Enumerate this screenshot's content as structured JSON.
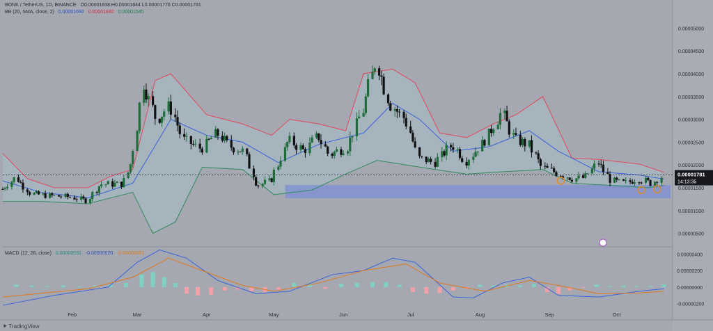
{
  "header": {
    "symbol": "BONK / TetherUS, 1D, BINANCE",
    "ohlc": "O0.00001838  H0.00001844  L0.00001778  C0.00001781",
    "bb_label": "BB (20, SMA, close, 2)",
    "bb_basis": "0.00001692",
    "bb_upper": "0.00001840",
    "bb_lower": "0.00001545"
  },
  "macd_header": {
    "label": "MACD (12, 26, close)",
    "hist": "0.00000031",
    "macd": "-0.00000020",
    "signal": "-0.00000051"
  },
  "price_label": {
    "value": "0.00001781",
    "countdown": "14:13:35"
  },
  "watermark": "TradingView",
  "colors": {
    "background": "#a5a8b0",
    "bull": "#1f6b3a",
    "bear": "#111111",
    "upper_band": "#e0485c",
    "basis": "#3a62d9",
    "lower_band": "#2d8a5a",
    "band_fill": "#a6c3cf",
    "support_zone": "#7d8fd6",
    "macd_line": "#3a62d9",
    "signal_line": "#e0781e",
    "hist_up": "#7fd1c4",
    "hist_down": "#f4a0a8",
    "marker": "#e08a2a"
  },
  "chart_data": [
    {
      "type": "candlestick",
      "title": "BONK / TetherUS, 1D, BINANCE",
      "y_axis_ticks": [
        "0.00005000",
        "0.00004500",
        "0.00004000",
        "0.00003500",
        "0.00003000",
        "0.00002500",
        "0.00002000",
        "0.00001500",
        "0.00001000",
        "0.00000500"
      ],
      "x_axis_ticks": [
        "Feb",
        "Mar",
        "Apr",
        "May",
        "Jun",
        "Jul",
        "Aug",
        "Sep",
        "Oct"
      ],
      "ylim": [
        2.5e-06,
        5.25e-05
      ],
      "grid": false,
      "last_close": 1.781e-05,
      "close_path": [
        {
          "x": "2024-01-01",
          "y": 1.47e-05
        },
        {
          "x": "2024-01-07",
          "y": 1.72e-05
        },
        {
          "x": "2024-01-14",
          "y": 1.37e-05
        },
        {
          "x": "2024-01-21",
          "y": 1.33e-05
        },
        {
          "x": "2024-01-31",
          "y": 1.3e-05
        },
        {
          "x": "2024-02-08",
          "y": 1.22e-05
        },
        {
          "x": "2024-02-14",
          "y": 1.58e-05
        },
        {
          "x": "2024-02-24",
          "y": 1.58e-05
        },
        {
          "x": "2024-02-28",
          "y": 2.1e-05
        },
        {
          "x": "2024-03-04",
          "y": 3.8e-05
        },
        {
          "x": "2024-03-10",
          "y": 3e-05
        },
        {
          "x": "2024-03-16",
          "y": 3.3e-05
        },
        {
          "x": "2024-03-22",
          "y": 2.55e-05
        },
        {
          "x": "2024-03-30",
          "y": 2.35e-05
        },
        {
          "x": "2024-04-06",
          "y": 2.7e-05
        },
        {
          "x": "2024-04-12",
          "y": 2.4e-05
        },
        {
          "x": "2024-04-18",
          "y": 2.3e-05
        },
        {
          "x": "2024-04-24",
          "y": 1.55e-05
        },
        {
          "x": "2024-04-30",
          "y": 1.65e-05
        },
        {
          "x": "2024-05-08",
          "y": 2.55e-05
        },
        {
          "x": "2024-05-15",
          "y": 2.3e-05
        },
        {
          "x": "2024-05-21",
          "y": 2.65e-05
        },
        {
          "x": "2024-05-26",
          "y": 2.22e-05
        },
        {
          "x": "2024-06-03",
          "y": 2.4e-05
        },
        {
          "x": "2024-06-10",
          "y": 3.2e-05
        },
        {
          "x": "2024-06-16",
          "y": 4.3e-05
        },
        {
          "x": "2024-06-22",
          "y": 3.35e-05
        },
        {
          "x": "2024-06-29",
          "y": 3e-05
        },
        {
          "x": "2024-07-05",
          "y": 2.15e-05
        },
        {
          "x": "2024-07-12",
          "y": 2.05e-05
        },
        {
          "x": "2024-07-20",
          "y": 2.45e-05
        },
        {
          "x": "2024-07-26",
          "y": 2.08e-05
        },
        {
          "x": "2024-08-03",
          "y": 2.5e-05
        },
        {
          "x": "2024-08-11",
          "y": 3.15e-05
        },
        {
          "x": "2024-08-17",
          "y": 2.55e-05
        },
        {
          "x": "2024-08-23",
          "y": 2.45e-05
        },
        {
          "x": "2024-08-29",
          "y": 1.95e-05
        },
        {
          "x": "2024-09-05",
          "y": 1.82e-05
        },
        {
          "x": "2024-09-12",
          "y": 1.7e-05
        },
        {
          "x": "2024-09-17",
          "y": 1.72e-05
        },
        {
          "x": "2024-09-23",
          "y": 2.05e-05
        },
        {
          "x": "2024-09-29",
          "y": 1.65e-05
        },
        {
          "x": "2024-10-05",
          "y": 1.6e-05
        },
        {
          "x": "2024-10-11",
          "y": 1.7e-05
        },
        {
          "x": "2024-10-17",
          "y": 1.6e-05
        },
        {
          "x": "2024-10-22",
          "y": 1.78e-05
        }
      ],
      "upper_band": [
        {
          "x": "2024-01-01",
          "y": 2.25e-05
        },
        {
          "x": "2024-01-12",
          "y": 1.7e-05
        },
        {
          "x": "2024-01-24",
          "y": 1.5e-05
        },
        {
          "x": "2024-02-08",
          "y": 1.5e-05
        },
        {
          "x": "2024-02-18",
          "y": 1.75e-05
        },
        {
          "x": "2024-02-28",
          "y": 1.9e-05
        },
        {
          "x": "2024-03-09",
          "y": 3.85e-05
        },
        {
          "x": "2024-03-16",
          "y": 4e-05
        },
        {
          "x": "2024-04-01",
          "y": 3.1e-05
        },
        {
          "x": "2024-04-17",
          "y": 2.9e-05
        },
        {
          "x": "2024-04-30",
          "y": 2.65e-05
        },
        {
          "x": "2024-05-08",
          "y": 3e-05
        },
        {
          "x": "2024-05-21",
          "y": 2.9e-05
        },
        {
          "x": "2024-06-02",
          "y": 2.75e-05
        },
        {
          "x": "2024-06-10",
          "y": 4e-05
        },
        {
          "x": "2024-06-23",
          "y": 4.1e-05
        },
        {
          "x": "2024-07-03",
          "y": 3.8e-05
        },
        {
          "x": "2024-07-14",
          "y": 2.7e-05
        },
        {
          "x": "2024-07-26",
          "y": 2.6e-05
        },
        {
          "x": "2024-08-07",
          "y": 2.9e-05
        },
        {
          "x": "2024-08-17",
          "y": 3.1e-05
        },
        {
          "x": "2024-08-29",
          "y": 3.5e-05
        },
        {
          "x": "2024-09-11",
          "y": 2.15e-05
        },
        {
          "x": "2024-09-23",
          "y": 2.12e-05
        },
        {
          "x": "2024-10-11",
          "y": 2.02e-05
        },
        {
          "x": "2024-10-22",
          "y": 1.84e-05
        }
      ],
      "basis": [
        {
          "x": "2024-01-01",
          "y": 1.65e-05
        },
        {
          "x": "2024-01-18",
          "y": 1.4e-05
        },
        {
          "x": "2024-02-08",
          "y": 1.28e-05
        },
        {
          "x": "2024-02-28",
          "y": 1.6e-05
        },
        {
          "x": "2024-03-16",
          "y": 3e-05
        },
        {
          "x": "2024-04-01",
          "y": 2.65e-05
        },
        {
          "x": "2024-04-17",
          "y": 2.5e-05
        },
        {
          "x": "2024-05-03",
          "y": 2.05e-05
        },
        {
          "x": "2024-05-21",
          "y": 2.45e-05
        },
        {
          "x": "2024-06-10",
          "y": 2.7e-05
        },
        {
          "x": "2024-06-23",
          "y": 3.35e-05
        },
        {
          "x": "2024-07-05",
          "y": 3e-05
        },
        {
          "x": "2024-07-20",
          "y": 2.3e-05
        },
        {
          "x": "2024-08-05",
          "y": 2.4e-05
        },
        {
          "x": "2024-08-23",
          "y": 2.75e-05
        },
        {
          "x": "2024-09-05",
          "y": 2.3e-05
        },
        {
          "x": "2024-09-23",
          "y": 1.85e-05
        },
        {
          "x": "2024-10-11",
          "y": 1.78e-05
        },
        {
          "x": "2024-10-22",
          "y": 1.69e-05
        }
      ],
      "lower_band": [
        {
          "x": "2024-01-01",
          "y": 1.2e-05
        },
        {
          "x": "2024-01-18",
          "y": 1.2e-05
        },
        {
          "x": "2024-02-08",
          "y": 1.15e-05
        },
        {
          "x": "2024-02-28",
          "y": 1.4e-05
        },
        {
          "x": "2024-03-08",
          "y": 5e-06
        },
        {
          "x": "2024-03-18",
          "y": 7.5e-06
        },
        {
          "x": "2024-03-30",
          "y": 1.95e-05
        },
        {
          "x": "2024-04-17",
          "y": 1.9e-05
        },
        {
          "x": "2024-05-01",
          "y": 1.35e-05
        },
        {
          "x": "2024-05-18",
          "y": 1.45e-05
        },
        {
          "x": "2024-06-02",
          "y": 1.8e-05
        },
        {
          "x": "2024-06-16",
          "y": 2.1e-05
        },
        {
          "x": "2024-06-29",
          "y": 2e-05
        },
        {
          "x": "2024-07-12",
          "y": 1.9e-05
        },
        {
          "x": "2024-07-26",
          "y": 1.8e-05
        },
        {
          "x": "2024-08-11",
          "y": 1.85e-05
        },
        {
          "x": "2024-08-29",
          "y": 1.9e-05
        },
        {
          "x": "2024-09-11",
          "y": 1.6e-05
        },
        {
          "x": "2024-09-29",
          "y": 1.55e-05
        },
        {
          "x": "2024-10-15",
          "y": 1.5e-05
        },
        {
          "x": "2024-10-22",
          "y": 1.55e-05
        }
      ],
      "support_zone": {
        "from": "2024-05-06",
        "to": "2024-10-25",
        "low": 1.27e-05,
        "high": 1.56e-05
      },
      "swing_low_markers": [
        "2024-09-06",
        "2024-10-12",
        "2024-10-19"
      ],
      "tick_dates": {
        "Feb": "2024-02-01",
        "Mar": "2024-03-01",
        "Apr": "2024-04-01",
        "May": "2024-05-01",
        "Jun": "2024-06-01",
        "Jul": "2024-07-01",
        "Aug": "2024-08-01",
        "Sep": "2024-09-01",
        "Oct": "2024-10-01"
      }
    },
    {
      "type": "histogram",
      "title": "MACD (12, 26, close)",
      "y_axis_ticks": [
        "0.00000400",
        "0.00000200",
        "0.00000000",
        "-0.00000200"
      ],
      "ylim": [
        -2.7e-06,
        4.7e-06
      ],
      "macd_line": [
        {
          "x": "2024-01-01",
          "y": -2.2e-06
        },
        {
          "x": "2024-01-24",
          "y": -1e-06
        },
        {
          "x": "2024-02-17",
          "y": 0.0
        },
        {
          "x": "2024-03-01",
          "y": 3e-06
        },
        {
          "x": "2024-03-11",
          "y": 4.5e-06
        },
        {
          "x": "2024-03-23",
          "y": 3.5e-06
        },
        {
          "x": "2024-04-06",
          "y": 8e-07
        },
        {
          "x": "2024-04-23",
          "y": -8e-07
        },
        {
          "x": "2024-05-08",
          "y": -5e-07
        },
        {
          "x": "2024-05-27",
          "y": 1.5e-06
        },
        {
          "x": "2024-06-10",
          "y": 2e-06
        },
        {
          "x": "2024-06-23",
          "y": 3.5e-06
        },
        {
          "x": "2024-07-03",
          "y": 3e-06
        },
        {
          "x": "2024-07-20",
          "y": -1.2e-06
        },
        {
          "x": "2024-07-29",
          "y": -1.3e-06
        },
        {
          "x": "2024-08-11",
          "y": 5e-07
        },
        {
          "x": "2024-08-23",
          "y": 1.2e-06
        },
        {
          "x": "2024-09-05",
          "y": -1e-06
        },
        {
          "x": "2024-09-23",
          "y": -1.2e-06
        },
        {
          "x": "2024-10-11",
          "y": -5e-07
        },
        {
          "x": "2024-10-22",
          "y": -2e-07
        }
      ],
      "signal_line": [
        {
          "x": "2024-01-01",
          "y": -1.2e-06
        },
        {
          "x": "2024-02-08",
          "y": -2e-07
        },
        {
          "x": "2024-02-28",
          "y": 1.2e-06
        },
        {
          "x": "2024-03-15",
          "y": 3.5e-06
        },
        {
          "x": "2024-03-30",
          "y": 2e-06
        },
        {
          "x": "2024-04-17",
          "y": 2e-07
        },
        {
          "x": "2024-05-01",
          "y": -5e-07
        },
        {
          "x": "2024-05-21",
          "y": 5e-07
        },
        {
          "x": "2024-06-10",
          "y": 2e-06
        },
        {
          "x": "2024-06-29",
          "y": 2.8e-06
        },
        {
          "x": "2024-07-14",
          "y": 5e-07
        },
        {
          "x": "2024-08-03",
          "y": -5e-07
        },
        {
          "x": "2024-08-23",
          "y": 8e-07
        },
        {
          "x": "2024-09-05",
          "y": 2e-07
        },
        {
          "x": "2024-09-23",
          "y": -8e-07
        },
        {
          "x": "2024-10-11",
          "y": -7e-07
        },
        {
          "x": "2024-10-22",
          "y": -5e-07
        }
      ],
      "histogram": [
        {
          "x": "2024-01-07",
          "y": 3e-07
        },
        {
          "x": "2024-01-14",
          "y": 2e-07
        },
        {
          "x": "2024-01-21",
          "y": 1e-07
        },
        {
          "x": "2024-01-28",
          "y": 2e-07
        },
        {
          "x": "2024-02-04",
          "y": 1e-07
        },
        {
          "x": "2024-02-11",
          "y": 2e-07
        },
        {
          "x": "2024-02-18",
          "y": 3e-07
        },
        {
          "x": "2024-02-25",
          "y": 5e-07
        },
        {
          "x": "2024-03-03",
          "y": 1.5e-06
        },
        {
          "x": "2024-03-08",
          "y": 1.8e-06
        },
        {
          "x": "2024-03-13",
          "y": 1.2e-06
        },
        {
          "x": "2024-03-18",
          "y": 5e-07
        },
        {
          "x": "2024-03-23",
          "y": -8e-07
        },
        {
          "x": "2024-03-28",
          "y": -1e-06
        },
        {
          "x": "2024-04-03",
          "y": -9e-07
        },
        {
          "x": "2024-04-09",
          "y": -4e-07
        },
        {
          "x": "2024-04-15",
          "y": -3e-07
        },
        {
          "x": "2024-04-21",
          "y": -5e-07
        },
        {
          "x": "2024-04-27",
          "y": -6e-07
        },
        {
          "x": "2024-05-03",
          "y": -3e-07
        },
        {
          "x": "2024-05-10",
          "y": 5e-07
        },
        {
          "x": "2024-05-17",
          "y": 4e-07
        },
        {
          "x": "2024-05-24",
          "y": -2e-07
        },
        {
          "x": "2024-05-31",
          "y": 4e-07
        },
        {
          "x": "2024-06-07",
          "y": 5e-07
        },
        {
          "x": "2024-06-14",
          "y": 6e-07
        },
        {
          "x": "2024-06-20",
          "y": 6e-07
        },
        {
          "x": "2024-06-26",
          "y": 3e-07
        },
        {
          "x": "2024-07-02",
          "y": -6e-07
        },
        {
          "x": "2024-07-08",
          "y": -8e-07
        },
        {
          "x": "2024-07-14",
          "y": -7e-07
        },
        {
          "x": "2024-07-20",
          "y": -4e-07
        },
        {
          "x": "2024-07-26",
          "y": -2e-07
        },
        {
          "x": "2024-08-01",
          "y": 3e-07
        },
        {
          "x": "2024-08-07",
          "y": 2e-07
        },
        {
          "x": "2024-08-13",
          "y": 3e-07
        },
        {
          "x": "2024-08-19",
          "y": 2e-07
        },
        {
          "x": "2024-08-25",
          "y": 4e-07
        },
        {
          "x": "2024-08-31",
          "y": -6e-07
        },
        {
          "x": "2024-09-05",
          "y": -8e-07
        },
        {
          "x": "2024-09-10",
          "y": -4e-07
        },
        {
          "x": "2024-09-16",
          "y": -1e-07
        },
        {
          "x": "2024-09-22",
          "y": 3e-07
        },
        {
          "x": "2024-09-28",
          "y": 1e-07
        },
        {
          "x": "2024-10-04",
          "y": 2e-07
        },
        {
          "x": "2024-10-10",
          "y": 1e-07
        },
        {
          "x": "2024-10-16",
          "y": 1e-07
        },
        {
          "x": "2024-10-22",
          "y": 3e-07
        }
      ]
    }
  ]
}
